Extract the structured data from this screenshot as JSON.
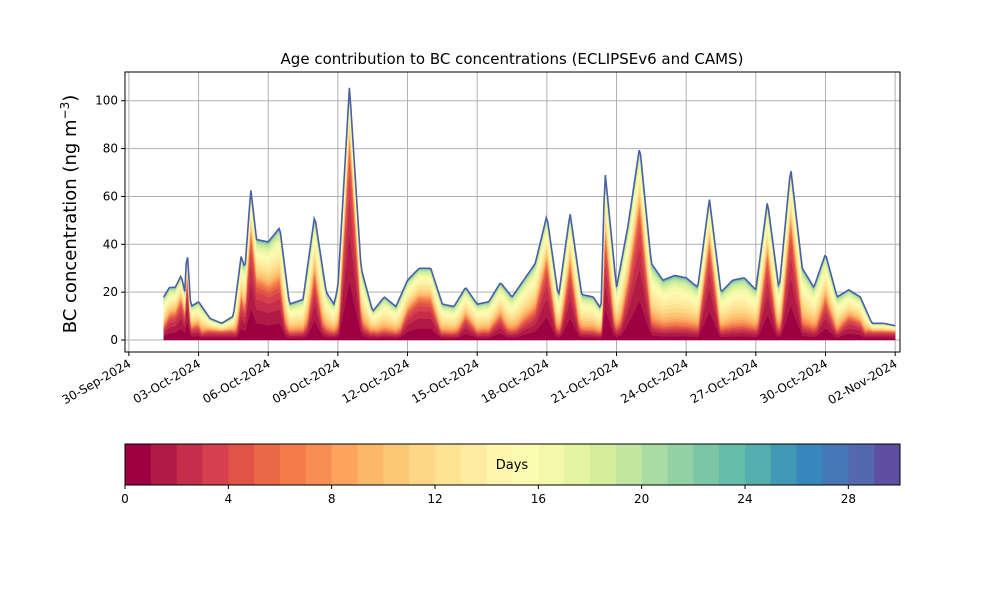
{
  "chart_data": {
    "type": "area",
    "title": "Age contribution to BC concentrations (ECLIPSEv6 and CAMS)",
    "ylabel": "BC concentration (ng m⁻³)",
    "ylabel_main": "BC concentration (ng m",
    "ylabel_unit_exp": "−3",
    "ylabel_close": ")",
    "xlabel": "",
    "x_ticks": [
      "30-Sep-2024",
      "03-Oct-2024",
      "06-Oct-2024",
      "09-Oct-2024",
      "12-Oct-2024",
      "15-Oct-2024",
      "18-Oct-2024",
      "21-Oct-2024",
      "24-Oct-2024",
      "27-Oct-2024",
      "30-Oct-2024",
      "02-Nov-2024"
    ],
    "y_ticks": [
      0,
      20,
      40,
      60,
      80,
      100
    ],
    "ylim": [
      -5,
      112
    ],
    "xlim": [
      "2024-09-29T20:00",
      "2024-11-02T05:00"
    ],
    "grid": true,
    "series_total": {
      "name": "total",
      "x": [
        "2024-10-01T12:00",
        "2024-10-01T18:00",
        "2024-10-02T00:00",
        "2024-10-02T06:00",
        "2024-10-02T10:00",
        "2024-10-02T12:00",
        "2024-10-02T16:00",
        "2024-10-03T00:00",
        "2024-10-03T12:00",
        "2024-10-04T00:00",
        "2024-10-04T12:00",
        "2024-10-04T20:00",
        "2024-10-05T00:00",
        "2024-10-05T06:00",
        "2024-10-05T12:00",
        "2024-10-06T00:00",
        "2024-10-06T12:00",
        "2024-10-06T22:00",
        "2024-10-07T12:00",
        "2024-10-08T00:00",
        "2024-10-08T12:00",
        "2024-10-08T20:00",
        "2024-10-09T00:00",
        "2024-10-09T12:00",
        "2024-10-10T00:00",
        "2024-10-10T12:00",
        "2024-10-11T00:00",
        "2024-10-11T12:00",
        "2024-10-12T00:00",
        "2024-10-12T12:00",
        "2024-10-13T00:00",
        "2024-10-13T12:00",
        "2024-10-14T00:00",
        "2024-10-14T12:00",
        "2024-10-15T00:00",
        "2024-10-15T12:00",
        "2024-10-16T00:00",
        "2024-10-16T12:00",
        "2024-10-17T00:00",
        "2024-10-17T12:00",
        "2024-10-18T00:00",
        "2024-10-18T12:00",
        "2024-10-19T00:00",
        "2024-10-19T12:00",
        "2024-10-20T00:00",
        "2024-10-20T08:00",
        "2024-10-20T12:00",
        "2024-10-21T00:00",
        "2024-10-21T12:00",
        "2024-10-22T00:00",
        "2024-10-22T12:00",
        "2024-10-23T00:00",
        "2024-10-23T12:00",
        "2024-10-24T00:00",
        "2024-10-24T12:00",
        "2024-10-25T00:00",
        "2024-10-25T12:00",
        "2024-10-26T00:00",
        "2024-10-26T12:00",
        "2024-10-27T00:00",
        "2024-10-27T12:00",
        "2024-10-28T00:00",
        "2024-10-28T12:00",
        "2024-10-29T00:00",
        "2024-10-29T12:00",
        "2024-10-30T00:00",
        "2024-10-30T12:00",
        "2024-10-31T00:00",
        "2024-10-31T12:00",
        "2024-11-01T00:00",
        "2024-11-01T12:00",
        "2024-11-02T00:00"
      ],
      "values": [
        18,
        22,
        22,
        27,
        20,
        39,
        14,
        16,
        9,
        7,
        10,
        35,
        30,
        63,
        42,
        41,
        47,
        15,
        17,
        52,
        20,
        15,
        22,
        106,
        30,
        12,
        18,
        14,
        25,
        30,
        30,
        15,
        14,
        22,
        15,
        16,
        24,
        18,
        25,
        32,
        52,
        18,
        53,
        19,
        18,
        13,
        71,
        22,
        48,
        81,
        32,
        25,
        27,
        26,
        22,
        59,
        20,
        25,
        26,
        21,
        58,
        21,
        72,
        30,
        22,
        36,
        18,
        21,
        18,
        7,
        7,
        6
      ]
    },
    "colorbar": {
      "label": "Days",
      "ticks": [
        0,
        4,
        8,
        12,
        16,
        20,
        24,
        28
      ],
      "range": [
        0,
        30
      ],
      "colors": [
        "#9e0142",
        "#b01b46",
        "#c52e4b",
        "#d6404e",
        "#e05346",
        "#ea6a47",
        "#f57b4a",
        "#f98e52",
        "#fca35e",
        "#fdb769",
        "#fdc876",
        "#fed685",
        "#fee393",
        "#feeda1",
        "#fff5ad",
        "#fbfbb1",
        "#f3f9a8",
        "#e5f4a0",
        "#d5ee9b",
        "#c0e69f",
        "#a9dca3",
        "#92d1a4",
        "#7bc7a5",
        "#66bda9",
        "#53aead",
        "#4099b5",
        "#3887bc",
        "#4676b5",
        "#5567ad",
        "#5e4fa2"
      ]
    }
  }
}
